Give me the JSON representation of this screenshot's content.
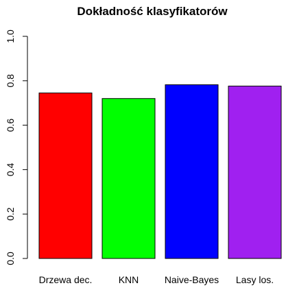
{
  "chart_data": {
    "type": "bar",
    "title": "Dokładność klasyfikatorów",
    "categories": [
      "Drzewa dec.",
      "KNN",
      "Naive-Bayes",
      "Lasy los."
    ],
    "values": [
      0.745,
      0.72,
      0.782,
      0.776
    ],
    "colors": [
      "#ff0000",
      "#00ff00",
      "#0000ff",
      "#a020f0"
    ],
    "ylim": [
      0,
      1
    ],
    "yticks": [
      0.0,
      0.2,
      0.4,
      0.6,
      0.8,
      1.0
    ],
    "ytick_labels": [
      "0.0",
      "0.2",
      "0.4",
      "0.6",
      "0.8",
      "1.0"
    ],
    "xlabel": "",
    "ylabel": "",
    "grid": false,
    "legend": "none"
  }
}
